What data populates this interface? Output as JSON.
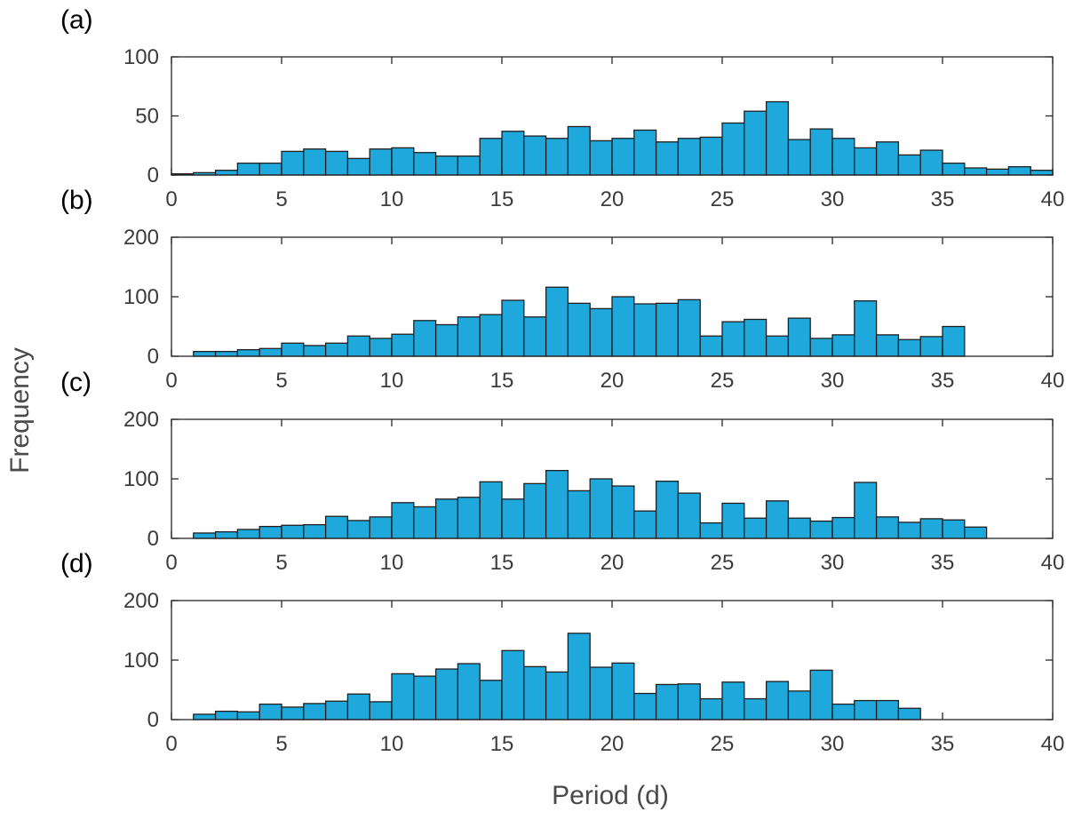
{
  "figure": {
    "xlabel": "Period (d)",
    "ylabel": "Frequency"
  },
  "colors": {
    "bar_fill": "#1ea8dc",
    "bar_edge": "#1f1f1f",
    "axis": "#262626"
  },
  "chart_data": [
    {
      "type": "bar",
      "panel_label": "(a)",
      "bin_width": 1,
      "bin_start": 0,
      "values": [
        1,
        2,
        4,
        10,
        10,
        20,
        22,
        20,
        14,
        22,
        23,
        19,
        16,
        16,
        31,
        37,
        33,
        31,
        41,
        29,
        31,
        38,
        28,
        31,
        32,
        44,
        54,
        62,
        30,
        39,
        31,
        23,
        28,
        17,
        21,
        10,
        6,
        5,
        7,
        4
      ],
      "xlim": [
        0,
        40
      ],
      "ylim": [
        0,
        100
      ],
      "xticks": [
        0,
        5,
        10,
        15,
        20,
        25,
        30,
        35,
        40
      ],
      "yticks": [
        0,
        50,
        100
      ]
    },
    {
      "type": "bar",
      "panel_label": "(b)",
      "bin_width": 1,
      "bin_start": 0,
      "values": [
        0,
        8,
        8,
        11,
        13,
        22,
        18,
        22,
        34,
        30,
        37,
        60,
        53,
        66,
        70,
        94,
        66,
        116,
        89,
        80,
        100,
        88,
        89,
        95,
        34,
        58,
        62,
        34,
        64,
        30,
        36,
        93,
        36,
        28,
        33,
        50,
        0,
        0,
        0,
        0
      ],
      "xlim": [
        0,
        40
      ],
      "ylim": [
        0,
        200
      ],
      "xticks": [
        0,
        5,
        10,
        15,
        20,
        25,
        30,
        35,
        40
      ],
      "yticks": [
        0,
        100,
        200
      ]
    },
    {
      "type": "bar",
      "panel_label": "(c)",
      "bin_width": 1,
      "bin_start": 0,
      "values": [
        0,
        9,
        11,
        15,
        20,
        22,
        23,
        37,
        30,
        36,
        60,
        53,
        66,
        69,
        95,
        66,
        92,
        114,
        80,
        100,
        88,
        46,
        96,
        76,
        26,
        59,
        34,
        63,
        34,
        29,
        35,
        94,
        36,
        27,
        33,
        31,
        19,
        0,
        0,
        0
      ],
      "xlim": [
        0,
        40
      ],
      "ylim": [
        0,
        200
      ],
      "xticks": [
        0,
        5,
        10,
        15,
        20,
        25,
        30,
        35,
        40
      ],
      "yticks": [
        0,
        100,
        200
      ]
    },
    {
      "type": "bar",
      "panel_label": "(d)",
      "bin_width": 1,
      "bin_start": 0,
      "values": [
        0,
        9,
        14,
        13,
        26,
        21,
        27,
        31,
        43,
        30,
        77,
        73,
        85,
        94,
        66,
        116,
        89,
        80,
        145,
        88,
        95,
        44,
        59,
        60,
        35,
        63,
        35,
        64,
        48,
        83,
        26,
        32,
        32,
        19,
        0,
        0,
        0,
        0,
        0,
        0
      ],
      "xlim": [
        0,
        40
      ],
      "ylim": [
        0,
        200
      ],
      "xticks": [
        0,
        5,
        10,
        15,
        20,
        25,
        30,
        35,
        40
      ],
      "yticks": [
        0,
        100,
        200
      ]
    }
  ]
}
